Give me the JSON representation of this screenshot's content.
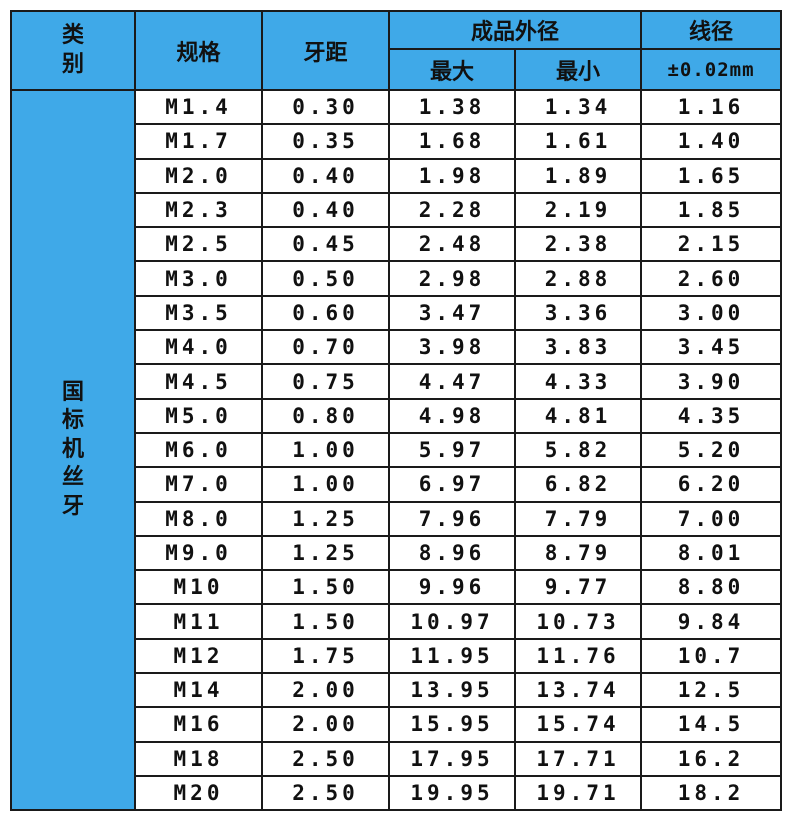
{
  "header": {
    "category": "类别",
    "spec": "规格",
    "pitch": "牙距",
    "outer": "成品外径",
    "max": "最大",
    "min": "最小",
    "wire": "线径",
    "tolerance": "±0.02mm"
  },
  "group": "国标机丝牙",
  "rows": [
    [
      "M1.4",
      "0.30",
      "1.38",
      "1.34",
      "1.16"
    ],
    [
      "M1.7",
      "0.35",
      "1.68",
      "1.61",
      "1.40"
    ],
    [
      "M2.0",
      "0.40",
      "1.98",
      "1.89",
      "1.65"
    ],
    [
      "M2.3",
      "0.40",
      "2.28",
      "2.19",
      "1.85"
    ],
    [
      "M2.5",
      "0.45",
      "2.48",
      "2.38",
      "2.15"
    ],
    [
      "M3.0",
      "0.50",
      "2.98",
      "2.88",
      "2.60"
    ],
    [
      "M3.5",
      "0.60",
      "3.47",
      "3.36",
      "3.00"
    ],
    [
      "M4.0",
      "0.70",
      "3.98",
      "3.83",
      "3.45"
    ],
    [
      "M4.5",
      "0.75",
      "4.47",
      "4.33",
      "3.90"
    ],
    [
      "M5.0",
      "0.80",
      "4.98",
      "4.81",
      "4.35"
    ],
    [
      "M6.0",
      "1.00",
      "5.97",
      "5.82",
      "5.20"
    ],
    [
      "M7.0",
      "1.00",
      "6.97",
      "6.82",
      "6.20"
    ],
    [
      "M8.0",
      "1.25",
      "7.96",
      "7.79",
      "7.00"
    ],
    [
      "M9.0",
      "1.25",
      "8.96",
      "8.79",
      "8.01"
    ],
    [
      "M10",
      "1.50",
      "9.96",
      "9.77",
      "8.80"
    ],
    [
      "M11",
      "1.50",
      "10.97",
      "10.73",
      "9.84"
    ],
    [
      "M12",
      "1.75",
      "11.95",
      "11.76",
      "10.7"
    ],
    [
      "M14",
      "2.00",
      "13.95",
      "13.74",
      "12.5"
    ],
    [
      "M16",
      "2.00",
      "15.95",
      "15.74",
      "14.5"
    ],
    [
      "M18",
      "2.50",
      "17.95",
      "17.71",
      "16.2"
    ],
    [
      "M20",
      "2.50",
      "19.95",
      "19.71",
      "18.2"
    ]
  ]
}
